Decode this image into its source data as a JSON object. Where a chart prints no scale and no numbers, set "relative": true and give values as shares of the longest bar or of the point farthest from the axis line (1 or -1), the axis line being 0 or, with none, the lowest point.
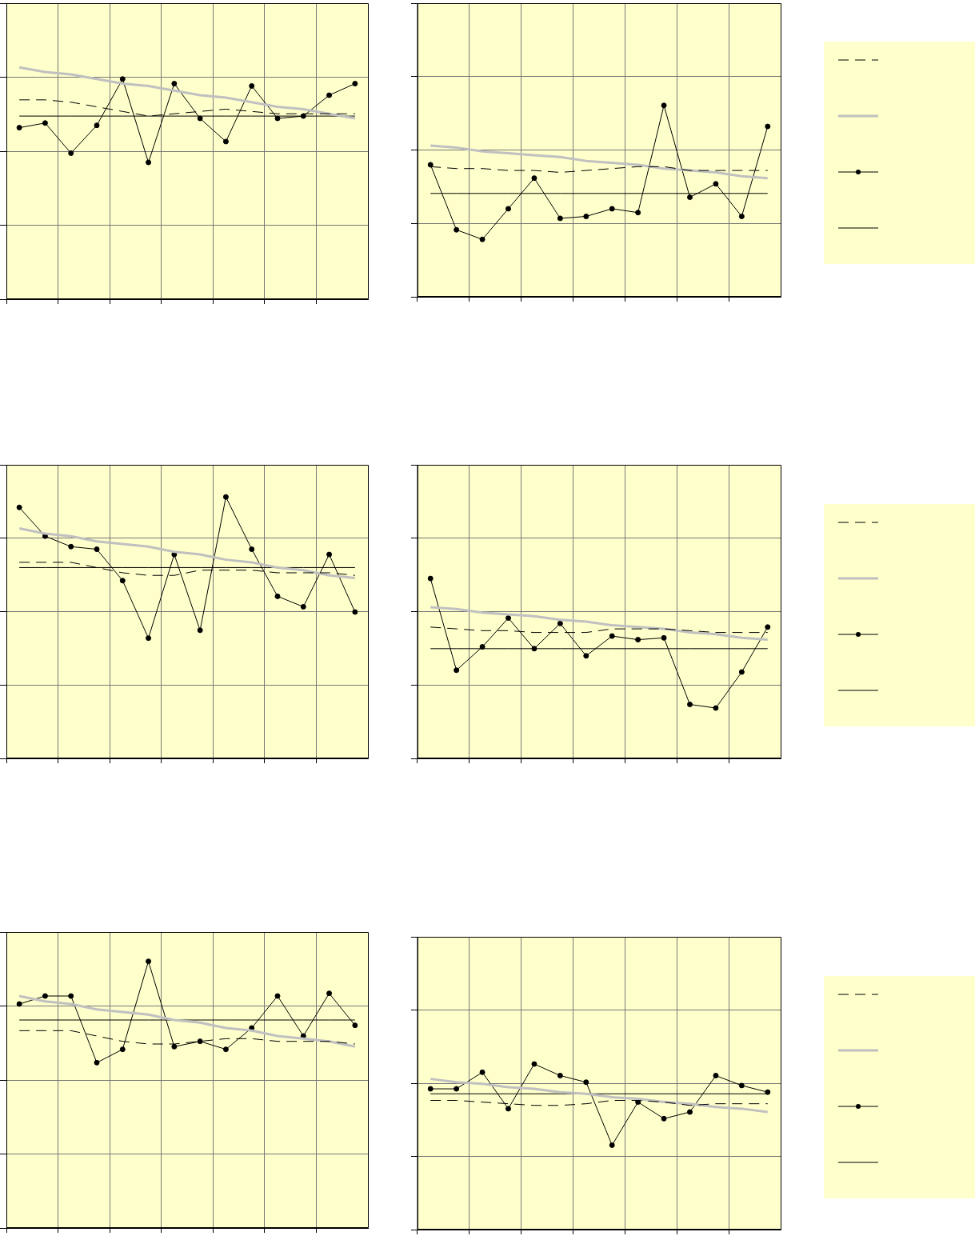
{
  "chart_data": [
    {
      "type": "line",
      "relative": true,
      "grid": true,
      "tick_labels": false,
      "categories": [
        null,
        null,
        null,
        null,
        null,
        null,
        null,
        null,
        null,
        null,
        null,
        null,
        null,
        null
      ],
      "series": [
        {
          "color": "#000000",
          "line_style": "dashed",
          "marker": "none",
          "values": [
            0.86,
            0.86,
            0.85,
            0.83,
            0.81,
            0.79,
            0.8,
            0.81,
            0.82,
            0.81,
            0.8,
            0.8,
            0.8,
            0.8
          ]
        },
        {
          "color": "#c0c0c0",
          "marker": "none",
          "values": [
            1.0,
            0.98,
            0.97,
            0.95,
            0.93,
            0.92,
            0.9,
            0.88,
            0.87,
            0.85,
            0.83,
            0.82,
            0.8,
            0.78
          ]
        },
        {
          "color": "#000000",
          "marker": "circle",
          "values": [
            0.74,
            0.76,
            0.63,
            0.75,
            0.95,
            0.59,
            0.93,
            0.78,
            0.68,
            0.92,
            0.78,
            0.79,
            0.88,
            0.93
          ]
        },
        {
          "color": "#000000",
          "marker": "none",
          "values": [
            0.79,
            0.79,
            0.79,
            0.79,
            0.79,
            0.79,
            0.79,
            0.79,
            0.79,
            0.79,
            0.79,
            0.79,
            0.79,
            0.79
          ]
        }
      ]
    },
    {
      "type": "line",
      "relative": true,
      "grid": true,
      "tick_labels": false,
      "categories": [
        null,
        null,
        null,
        null,
        null,
        null,
        null,
        null,
        null,
        null,
        null,
        null,
        null,
        null
      ],
      "series": [
        {
          "color": "#000000",
          "line_style": "dashed",
          "marker": "none",
          "values": [
            0.68,
            0.67,
            0.67,
            0.66,
            0.66,
            0.65,
            0.66,
            0.67,
            0.68,
            0.68,
            0.66,
            0.66,
            0.66,
            0.66
          ]
        },
        {
          "color": "#c0c0c0",
          "marker": "none",
          "values": [
            0.79,
            0.78,
            0.76,
            0.75,
            0.74,
            0.73,
            0.71,
            0.7,
            0.69,
            0.67,
            0.66,
            0.65,
            0.63,
            0.62
          ]
        },
        {
          "color": "#000000",
          "marker": "circle",
          "values": [
            0.69,
            0.35,
            0.3,
            0.46,
            0.62,
            0.41,
            0.42,
            0.46,
            0.44,
            1.0,
            0.52,
            0.59,
            0.42,
            0.89
          ]
        },
        {
          "color": "#000000",
          "marker": "none",
          "values": [
            0.54,
            0.54,
            0.54,
            0.54,
            0.54,
            0.54,
            0.54,
            0.54,
            0.54,
            0.54,
            0.54,
            0.54,
            0.54,
            0.54
          ]
        }
      ]
    },
    {
      "type": "line",
      "relative": true,
      "grid": true,
      "tick_labels": false,
      "categories": [
        null,
        null,
        null,
        null,
        null,
        null,
        null,
        null,
        null,
        null,
        null,
        null,
        null,
        null
      ],
      "series": [
        {
          "color": "#000000",
          "line_style": "dashed",
          "marker": "none",
          "values": [
            0.75,
            0.75,
            0.75,
            0.73,
            0.71,
            0.7,
            0.7,
            0.72,
            0.72,
            0.72,
            0.71,
            0.71,
            0.71,
            0.7
          ]
        },
        {
          "color": "#c0c0c0",
          "marker": "none",
          "values": [
            0.88,
            0.86,
            0.85,
            0.83,
            0.82,
            0.81,
            0.79,
            0.78,
            0.76,
            0.75,
            0.73,
            0.72,
            0.7,
            0.69
          ]
        },
        {
          "color": "#000000",
          "marker": "circle",
          "values": [
            0.96,
            0.85,
            0.81,
            0.8,
            0.68,
            0.46,
            0.78,
            0.49,
            1.0,
            0.8,
            0.62,
            0.58,
            0.78,
            0.56
          ]
        },
        {
          "color": "#000000",
          "marker": "none",
          "values": [
            0.73,
            0.73,
            0.73,
            0.73,
            0.73,
            0.73,
            0.73,
            0.73,
            0.73,
            0.73,
            0.73,
            0.73,
            0.73,
            0.73
          ]
        }
      ]
    },
    {
      "type": "line",
      "relative": true,
      "grid": true,
      "tick_labels": false,
      "categories": [
        null,
        null,
        null,
        null,
        null,
        null,
        null,
        null,
        null,
        null,
        null,
        null,
        null,
        null
      ],
      "series": [
        {
          "color": "#000000",
          "line_style": "dashed",
          "marker": "none",
          "values": [
            0.73,
            0.72,
            0.71,
            0.71,
            0.7,
            0.7,
            0.7,
            0.72,
            0.72,
            0.72,
            0.71,
            0.7,
            0.7,
            0.7
          ]
        },
        {
          "color": "#c0c0c0",
          "marker": "none",
          "values": [
            0.84,
            0.83,
            0.81,
            0.8,
            0.79,
            0.77,
            0.76,
            0.74,
            0.73,
            0.72,
            0.7,
            0.69,
            0.67,
            0.66
          ]
        },
        {
          "color": "#000000",
          "marker": "circle",
          "values": [
            1.0,
            0.49,
            0.62,
            0.78,
            0.61,
            0.75,
            0.57,
            0.68,
            0.66,
            0.67,
            0.3,
            0.28,
            0.48,
            0.73
          ]
        },
        {
          "color": "#000000",
          "marker": "none",
          "values": [
            0.61,
            0.61,
            0.61,
            0.61,
            0.61,
            0.61,
            0.61,
            0.61,
            0.61,
            0.61,
            0.61,
            0.61,
            0.61,
            0.61
          ]
        }
      ]
    },
    {
      "type": "line",
      "relative": true,
      "grid": true,
      "tick_labels": false,
      "categories": [
        null,
        null,
        null,
        null,
        null,
        null,
        null,
        null,
        null,
        null,
        null,
        null,
        null,
        null
      ],
      "series": [
        {
          "color": "#000000",
          "line_style": "dashed",
          "marker": "none",
          "values": [
            0.74,
            0.74,
            0.74,
            0.72,
            0.7,
            0.69,
            0.69,
            0.7,
            0.71,
            0.71,
            0.7,
            0.7,
            0.7,
            0.69
          ]
        },
        {
          "color": "#c0c0c0",
          "marker": "none",
          "values": [
            0.87,
            0.85,
            0.84,
            0.82,
            0.81,
            0.8,
            0.78,
            0.77,
            0.75,
            0.74,
            0.72,
            0.71,
            0.7,
            0.68
          ]
        },
        {
          "color": "#000000",
          "marker": "circle",
          "values": [
            0.84,
            0.87,
            0.87,
            0.62,
            0.67,
            1.0,
            0.68,
            0.7,
            0.67,
            0.75,
            0.87,
            0.72,
            0.88,
            0.76
          ]
        },
        {
          "color": "#000000",
          "marker": "none",
          "values": [
            0.78,
            0.78,
            0.78,
            0.78,
            0.78,
            0.78,
            0.78,
            0.78,
            0.78,
            0.78,
            0.78,
            0.78,
            0.78,
            0.78
          ]
        }
      ]
    },
    {
      "type": "line",
      "relative": true,
      "grid": true,
      "tick_labels": false,
      "categories": [
        null,
        null,
        null,
        null,
        null,
        null,
        null,
        null,
        null,
        null,
        null,
        null,
        null,
        null
      ],
      "series": [
        {
          "color": "#000000",
          "line_style": "dashed",
          "marker": "none",
          "values": [
            0.78,
            0.78,
            0.77,
            0.76,
            0.75,
            0.75,
            0.76,
            0.78,
            0.78,
            0.77,
            0.75,
            0.76,
            0.76,
            0.76
          ]
        },
        {
          "color": "#c0c0c0",
          "marker": "none",
          "values": [
            0.91,
            0.89,
            0.88,
            0.86,
            0.85,
            0.83,
            0.82,
            0.8,
            0.79,
            0.77,
            0.76,
            0.74,
            0.73,
            0.71
          ]
        },
        {
          "color": "#000000",
          "marker": "circle",
          "values": [
            0.85,
            0.85,
            0.95,
            0.73,
            1.0,
            0.93,
            0.89,
            0.51,
            0.77,
            0.67,
            0.71,
            0.93,
            0.87,
            0.83
          ]
        },
        {
          "color": "#000000",
          "marker": "none",
          "values": [
            0.82,
            0.82,
            0.82,
            0.82,
            0.82,
            0.82,
            0.82,
            0.82,
            0.82,
            0.82,
            0.82,
            0.82,
            0.82,
            0.82
          ]
        }
      ]
    }
  ]
}
